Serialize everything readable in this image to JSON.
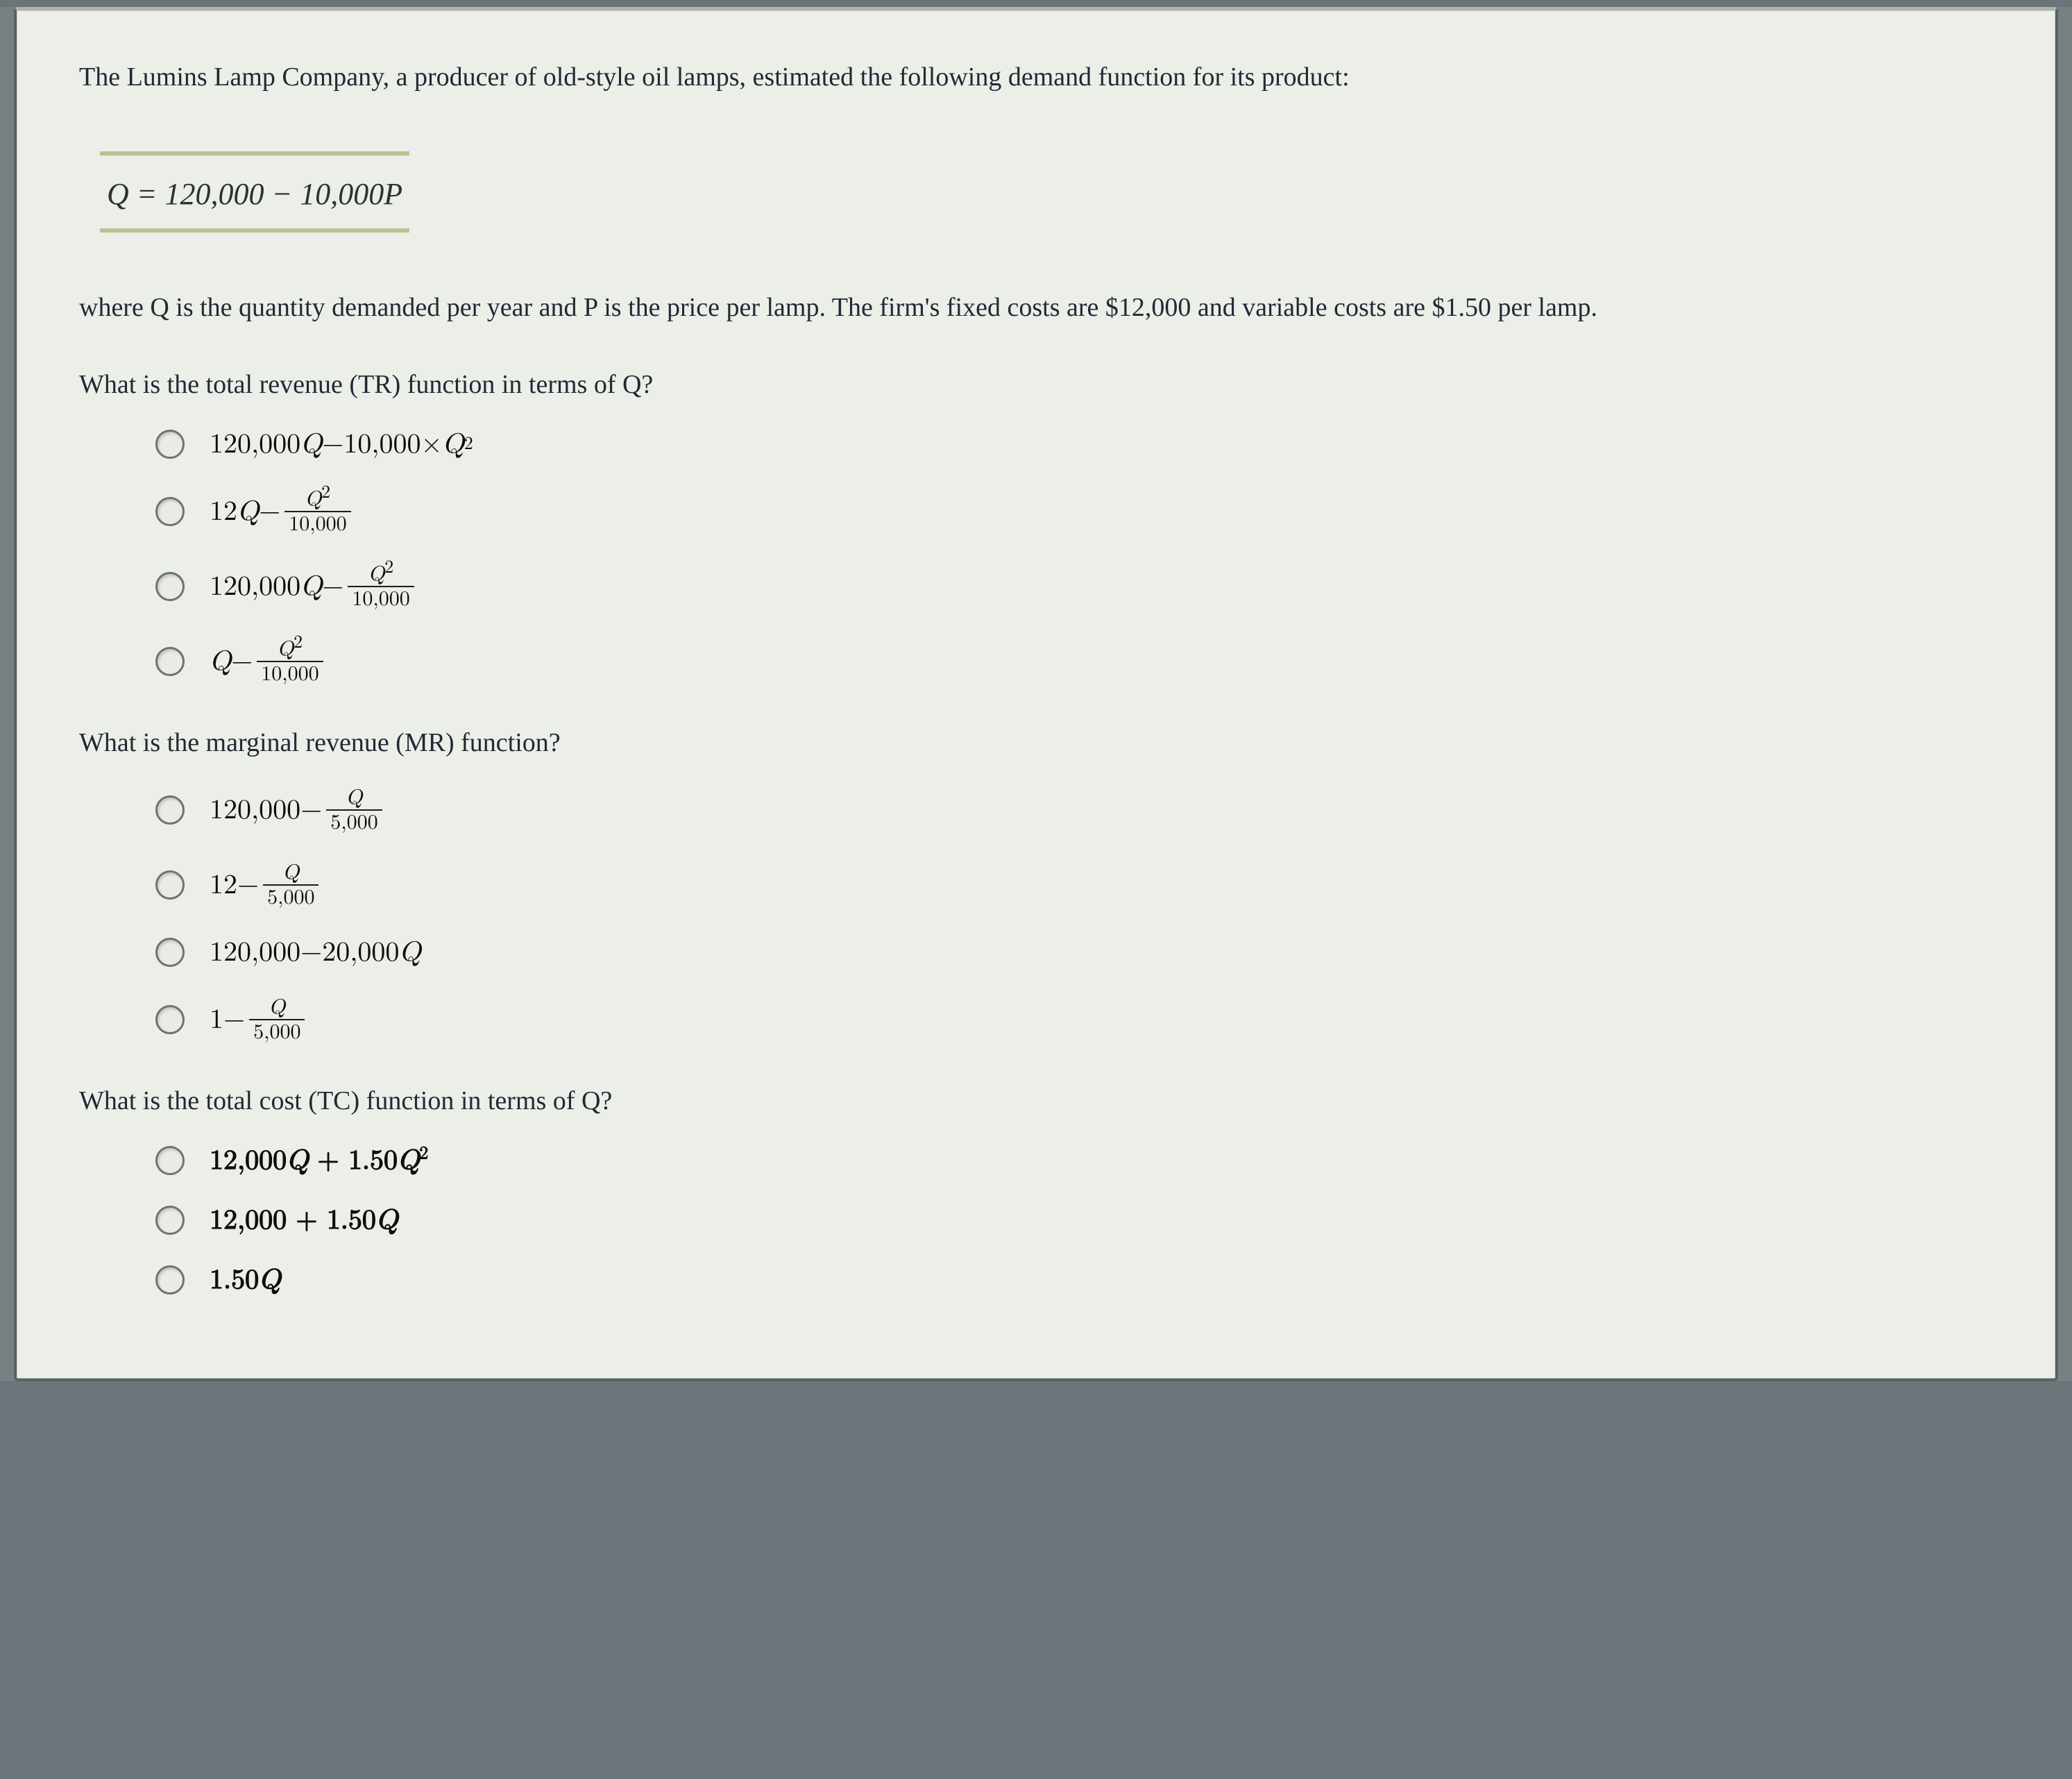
{
  "card": {
    "intro": "The Lumins Lamp Company, a producer of old-style oil lamps, estimated the following demand function for its product:",
    "demand_equation": {
      "lhs": "Q",
      "eq": " = ",
      "rhs_a": "120,000",
      "minus": " − ",
      "rhs_b": "10,000",
      "P": "P"
    },
    "context": "where Q is the quantity demanded per year and P is the price per lamp. The firm's fixed costs are $12,000 and variable costs are $1.50 per lamp.",
    "q1": {
      "prompt": "What is the total revenue (TR) function in terms of Q?",
      "options": {
        "a": {
          "lead": "120,000",
          "Q": "Q",
          "minus": " − ",
          "b": "10,000",
          "times": " × ",
          "Q2": "Q",
          "sq": "2"
        },
        "b": {
          "lead": "12",
          "Q": "Q",
          "minus": " − ",
          "num_var": "Q",
          "num_sup": "2",
          "den": "10,000"
        },
        "c": {
          "lead": "120,000",
          "Q": "Q",
          "minus": " − ",
          "num_var": "Q",
          "num_sup": "2",
          "den": "10,000"
        },
        "d": {
          "Q": "Q",
          "minus": " − ",
          "num_var": "Q",
          "num_sup": "2",
          "den": "10,000"
        }
      }
    },
    "q2": {
      "prompt": "What is the marginal revenue (MR) function?",
      "options": {
        "a": {
          "lead": "120,000",
          "minus": " − ",
          "num_var": "Q",
          "den": "5,000"
        },
        "b": {
          "lead": "12",
          "minus": " − ",
          "num_var": "Q",
          "den": "5,000"
        },
        "c": {
          "lead": "120,000",
          "minus": " − ",
          "b": "20,000",
          "Q": "Q"
        },
        "d": {
          "lead": "1",
          "minus": " − ",
          "num_var": "Q",
          "den": "5,000"
        }
      }
    },
    "q3": {
      "prompt": "What is the total cost (TC) function in terms of Q?",
      "options": {
        "a": {
          "a": "12,000",
          "Q": "Q",
          "plus": " + ",
          "b": "1.50",
          "Q2": "Q",
          "sq": "2"
        },
        "b": {
          "a": "12,000",
          "plus": " + ",
          "b": "1.50",
          "Q": "Q"
        },
        "c": {
          "a": "1.50",
          "Q": "Q"
        }
      }
    }
  }
}
